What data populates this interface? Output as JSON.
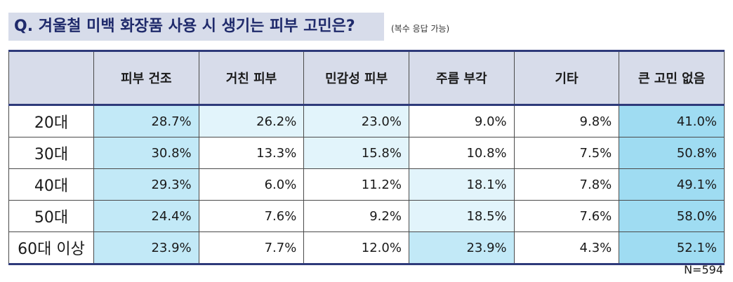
{
  "question": {
    "title": "Q. 겨울철 미백 화장품 사용 시 생기는 피부 고민은?",
    "note": "(복수 응답 가능)"
  },
  "sample_note": "N=594",
  "colors": {
    "header_bg": "#d7dcea",
    "title_text": "#1f2a6b",
    "shade_dark": "#9fdcf2",
    "shade_mid": "#c2e9f7",
    "shade_light": "#e2f4fb"
  },
  "chart_data": {
    "type": "table",
    "title": "Q. 겨울철 미백 화장품 사용 시 생기는 피부 고민은?",
    "columns": [
      "피부 건조",
      "거친 피부",
      "민감성 피부",
      "주름 부각",
      "기타",
      "큰 고민 없음"
    ],
    "rows": [
      {
        "label": "20대",
        "values": [
          "28.7%",
          "26.2%",
          "23.0%",
          "9.0%",
          "9.8%",
          "41.0%"
        ]
      },
      {
        "label": "30대",
        "values": [
          "30.8%",
          "13.3%",
          "15.8%",
          "10.8%",
          "7.5%",
          "50.8%"
        ]
      },
      {
        "label": "40대",
        "values": [
          "29.3%",
          "6.0%",
          "11.2%",
          "18.1%",
          "7.8%",
          "49.1%"
        ]
      },
      {
        "label": "50대",
        "values": [
          "24.4%",
          "7.6%",
          "9.2%",
          "18.5%",
          "7.6%",
          "58.0%"
        ]
      },
      {
        "label": "60대 이상",
        "values": [
          "23.9%",
          "7.7%",
          "12.0%",
          "23.9%",
          "4.3%",
          "52.1%"
        ]
      }
    ],
    "highlight": [
      [
        2,
        1,
        1,
        0,
        0,
        3
      ],
      [
        2,
        0,
        1,
        0,
        0,
        3
      ],
      [
        2,
        0,
        0,
        1,
        0,
        3
      ],
      [
        2,
        0,
        0,
        1,
        0,
        3
      ],
      [
        2,
        0,
        0,
        2,
        0,
        3
      ]
    ]
  }
}
